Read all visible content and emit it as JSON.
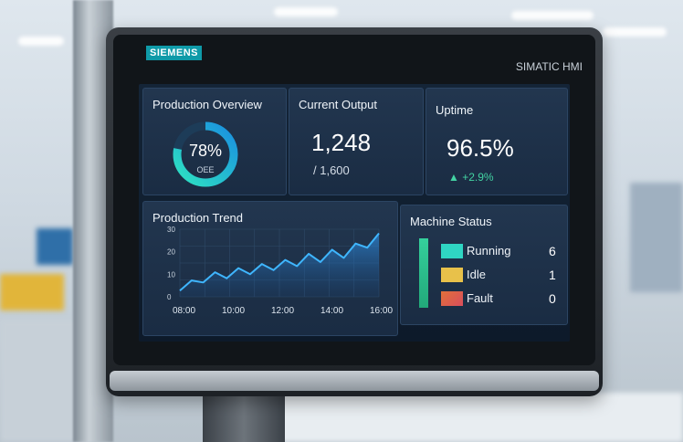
{
  "device": {
    "brand": "SIEMENS",
    "model": "SIMATIC HMI"
  },
  "overview": {
    "title": "Production Overview",
    "oee_percent": "78%",
    "oee_label": "OEE",
    "oee_value": 0.78
  },
  "output": {
    "title": "Current Output",
    "value": "1,248",
    "target": "/ 1,600"
  },
  "uptime": {
    "title": "Uptime",
    "value": "96.5%",
    "change": "+2.9%"
  },
  "trend": {
    "title": "Production Trend",
    "y_ticks": [
      "30",
      "20",
      "10",
      "0"
    ],
    "x_ticks": [
      "08:00",
      "10:00",
      "12:00",
      "14:00",
      "16:00"
    ]
  },
  "machines": {
    "title": "Machine Status",
    "items": [
      {
        "label": "Running",
        "count": "6",
        "color": "#2fd6c3"
      },
      {
        "label": "Idle",
        "count": "1",
        "color": "#e8c14a"
      },
      {
        "label": "Fault",
        "count": "0",
        "color": "#e0703a"
      }
    ]
  },
  "chart_data": {
    "type": "line",
    "x": [
      "08:00",
      "08:30",
      "09:00",
      "09:30",
      "10:00",
      "10:30",
      "11:00",
      "11:30",
      "12:00",
      "12:30",
      "13:00",
      "13:30",
      "14:00",
      "14:30",
      "15:00",
      "15:30",
      "16:00",
      "16:30"
    ],
    "series": [
      {
        "values": [
          3,
          8,
          7,
          12,
          9,
          14,
          11,
          16,
          13,
          18,
          15,
          21,
          17,
          23,
          19,
          26,
          24,
          31
        ]
      }
    ],
    "ylim": [
      0,
      33
    ],
    "xlabel": "",
    "ylabel": ""
  }
}
